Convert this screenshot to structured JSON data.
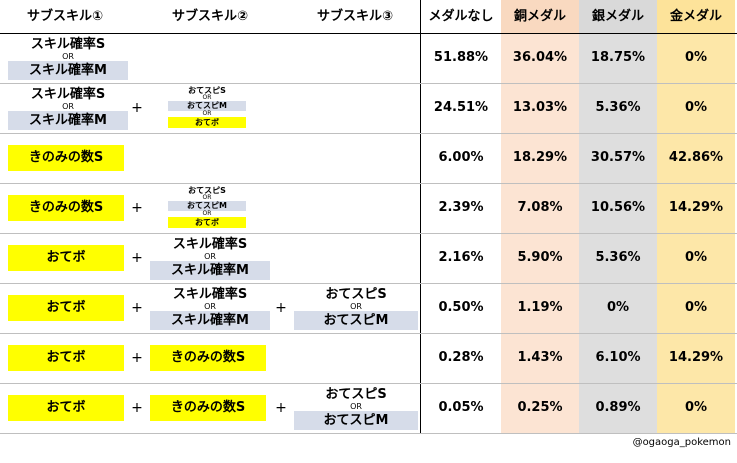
{
  "headers": {
    "sub1": "サブスキル①",
    "sub2": "サブスキル②",
    "sub3": "サブスキル③",
    "none": "メダルなし",
    "bronze": "銅メダル",
    "silver": "銀メダル",
    "gold": "金メダル"
  },
  "labels": {
    "skillS": "スキル確率S",
    "skillM": "スキル確率M",
    "or": "OR",
    "kinomi": "きのみの数S",
    "otebo": "おてボ",
    "speedS": "おてスピS",
    "speedM": "おてスピM",
    "plus": "+"
  },
  "rows": [
    {
      "none": "51.88%",
      "bronze": "36.04%",
      "silver": "18.75%",
      "gold": "0%"
    },
    {
      "none": "24.51%",
      "bronze": "13.03%",
      "silver": "5.36%",
      "gold": "0%"
    },
    {
      "none": "6.00%",
      "bronze": "18.29%",
      "silver": "30.57%",
      "gold": "42.86%"
    },
    {
      "none": "2.39%",
      "bronze": "7.08%",
      "silver": "10.56%",
      "gold": "14.29%"
    },
    {
      "none": "2.16%",
      "bronze": "5.90%",
      "silver": "5.36%",
      "gold": "0%"
    },
    {
      "none": "0.50%",
      "bronze": "1.19%",
      "silver": "0%",
      "gold": "0%"
    },
    {
      "none": "0.28%",
      "bronze": "1.43%",
      "silver": "6.10%",
      "gold": "14.29%"
    },
    {
      "none": "0.05%",
      "bronze": "0.25%",
      "silver": "0.89%",
      "gold": "0%"
    }
  ],
  "credit": "@ogaoga_pokemon",
  "colors": {
    "yellow": "#ffff00",
    "blue": "#d6dce9",
    "bronze": "#fce4d3",
    "silver": "#dedede",
    "gold": "#fde7a8"
  }
}
